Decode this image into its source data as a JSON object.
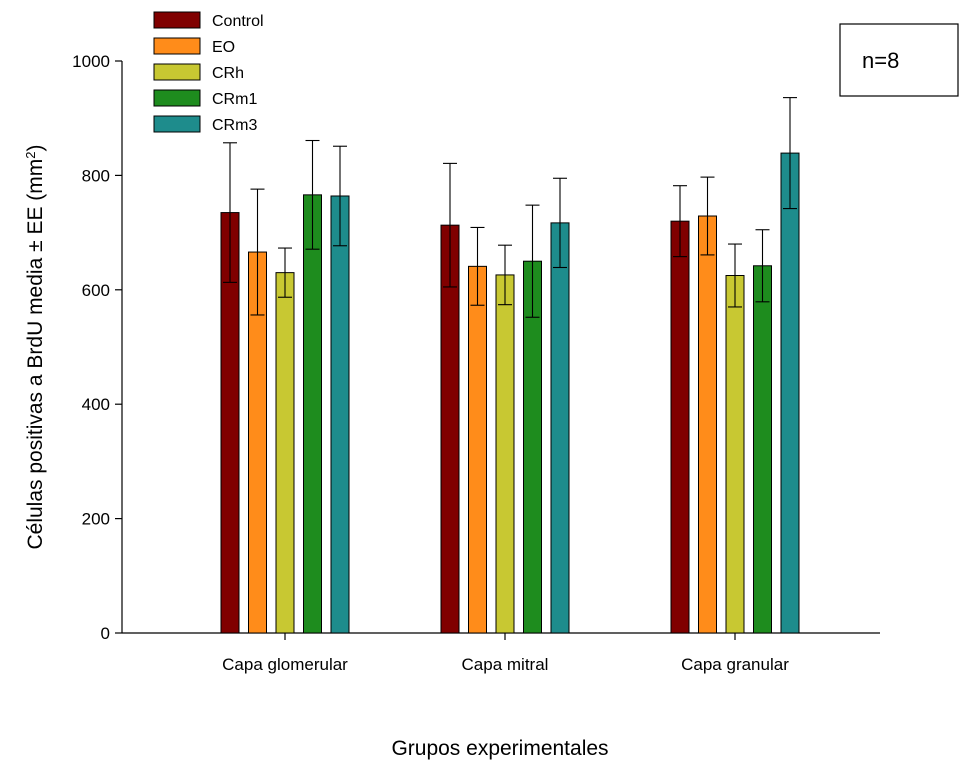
{
  "chart_data": {
    "type": "bar",
    "title": "",
    "xlabel": "Grupos experimentales",
    "ylabel_main": "Células positivas a BrdU media ± EE (mm",
    "ylabel_sup": "2",
    "ylabel_close": ")",
    "ylim": [
      0,
      1000
    ],
    "yticks": [
      0,
      200,
      400,
      600,
      800,
      1000
    ],
    "yticks_text": [
      "0",
      "200",
      "400",
      "600",
      "800",
      "1000"
    ],
    "categories": [
      "Capa glomerular",
      "Capa mitral",
      "Capa granular"
    ],
    "legend_position": "top-left",
    "grid": false,
    "series": [
      {
        "name": "Control",
        "color": "#800000",
        "values": [
          735,
          713,
          720
        ],
        "errors": [
          122,
          108,
          62
        ]
      },
      {
        "name": "EO",
        "color": "#ff8c1a",
        "values": [
          666,
          641,
          729
        ],
        "errors": [
          110,
          68,
          68
        ]
      },
      {
        "name": "CRh",
        "color": "#c8c832",
        "values": [
          630,
          626,
          625
        ],
        "errors": [
          43,
          52,
          55
        ]
      },
      {
        "name": "CRm1",
        "color": "#1e8c1e",
        "values": [
          766,
          650,
          642
        ],
        "errors": [
          95,
          98,
          63
        ]
      },
      {
        "name": "CRm3",
        "color": "#1e8c8c",
        "values": [
          764,
          717,
          839
        ],
        "errors": [
          87,
          78,
          97
        ]
      }
    ]
  },
  "annotation": {
    "text": "n=8"
  }
}
